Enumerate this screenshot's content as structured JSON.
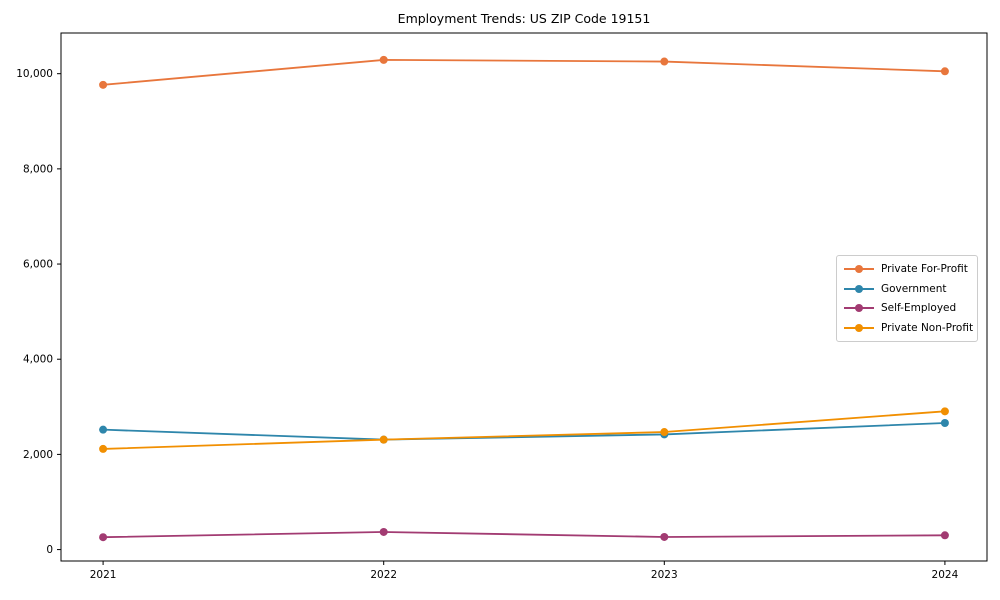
{
  "chart_data": {
    "type": "line",
    "title": "Employment Trends: US ZIP Code 19151",
    "xlabel": "",
    "ylabel": "",
    "x": [
      2021,
      2022,
      2023,
      2024
    ],
    "xtick_labels": [
      "2021",
      "2022",
      "2023",
      "2024"
    ],
    "yticks": [
      0,
      2000,
      4000,
      6000,
      8000,
      10000
    ],
    "ytick_labels": [
      "0",
      "2,000",
      "4,000",
      "6,000",
      "8,000",
      "10,000"
    ],
    "xlim": [
      2020.85,
      2024.15
    ],
    "ylim": [
      -240,
      10855
    ],
    "grid": false,
    "legend_position": "center-right",
    "series": [
      {
        "name": "Private For-Profit",
        "color": "#E8763C",
        "values": [
          9766,
          10290,
          10255,
          10050
        ]
      },
      {
        "name": "Government",
        "color": "#2E86AB",
        "values": [
          2520,
          2310,
          2420,
          2660
        ]
      },
      {
        "name": "Self-Employed",
        "color": "#A23B72",
        "values": [
          260,
          370,
          265,
          300
        ]
      },
      {
        "name": "Private Non-Profit",
        "color": "#F18F01",
        "values": [
          2115,
          2310,
          2470,
          2905
        ]
      }
    ],
    "colors": {
      "axes_frame": "#000000",
      "tick_label": "#000000",
      "title": "#000000",
      "legend_border": "#cccccc",
      "background": "#ffffff"
    }
  }
}
